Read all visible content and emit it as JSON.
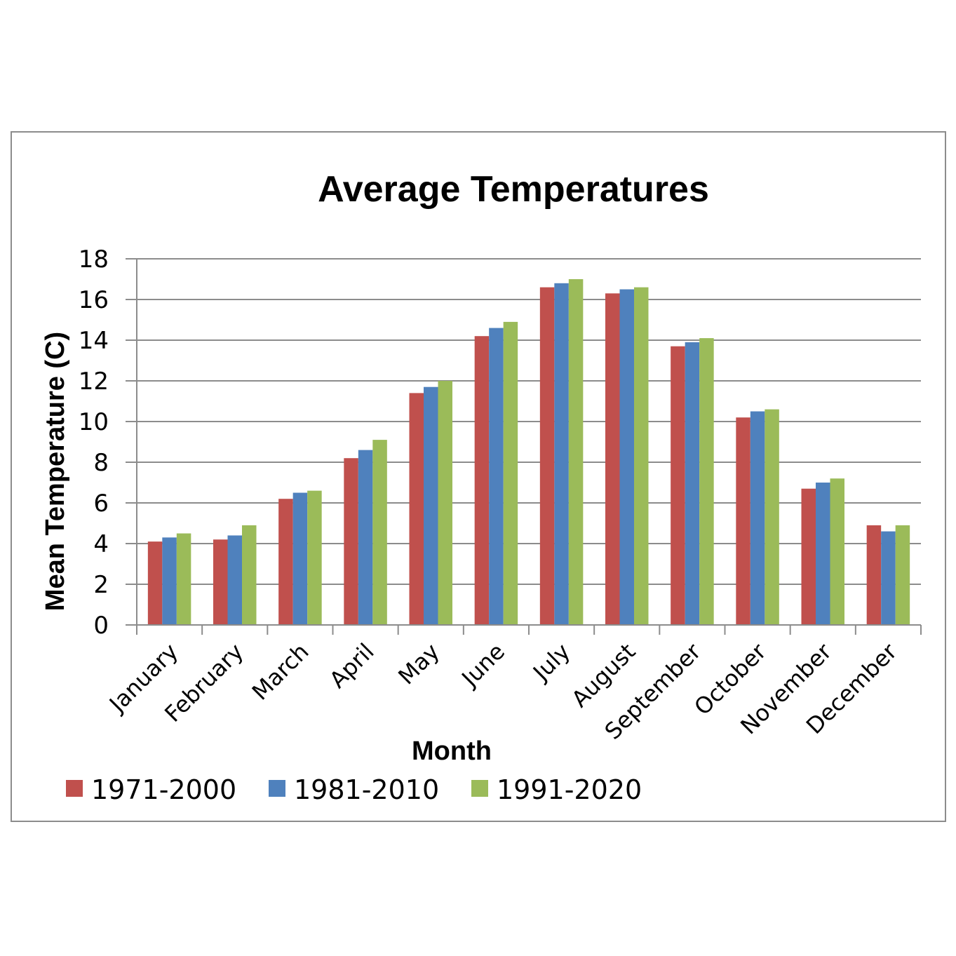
{
  "chart_data": {
    "type": "bar",
    "title": "Average Temperatures",
    "xlabel": "Month",
    "ylabel": "Mean Temperature (C)",
    "ylim": [
      0,
      18
    ],
    "yticks": [
      "0",
      "2",
      "4",
      "6",
      "8",
      "10",
      "12",
      "14",
      "16",
      "18"
    ],
    "grid": true,
    "legend_position": "bottom",
    "categories": [
      "January",
      "February",
      "March",
      "April",
      "May",
      "June",
      "July",
      "August",
      "September",
      "October",
      "November",
      "December"
    ],
    "series": [
      {
        "name": "1971-2000",
        "color": "#c0504d",
        "values": [
          4.1,
          4.2,
          6.2,
          8.2,
          11.4,
          14.2,
          16.6,
          16.3,
          13.7,
          10.2,
          6.7,
          4.9
        ]
      },
      {
        "name": "1981-2010",
        "color": "#4f81bd",
        "values": [
          4.3,
          4.4,
          6.5,
          8.6,
          11.7,
          14.6,
          16.8,
          16.5,
          13.9,
          10.5,
          7.0,
          4.6
        ]
      },
      {
        "name": "1991-2020",
        "color": "#9bbb59",
        "values": [
          4.5,
          4.9,
          6.6,
          9.1,
          12.0,
          14.9,
          17.0,
          16.6,
          14.1,
          10.6,
          7.2,
          4.9
        ]
      }
    ]
  }
}
